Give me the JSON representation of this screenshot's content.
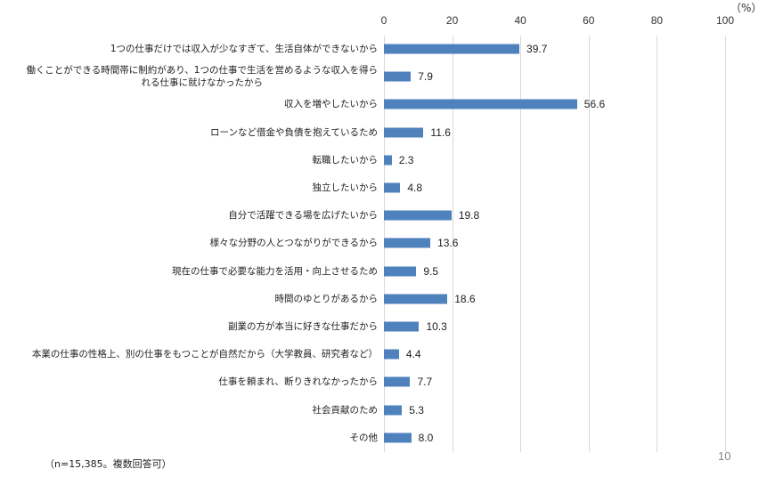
{
  "chart_data": {
    "type": "bar",
    "orientation": "horizontal",
    "title": "",
    "xlabel": "",
    "ylabel": "",
    "unit_label": "（%）",
    "xlim": [
      0,
      100
    ],
    "x_ticks": [
      "0",
      "20",
      "40",
      "60",
      "80",
      "100"
    ],
    "grid": true,
    "bar_color": "#4f81bd",
    "categories": [
      "1つの仕事だけでは収入が少なすぎて、生活自体ができないから",
      "働くことができる時間帯に制約があり、1つの仕事で生活を営めるような収入を得られる仕事に就けなかったから",
      "収入を増やしたいから",
      "ローンなど借金や負債を抱えているため",
      "転職したいから",
      "独立したいから",
      "自分で活躍できる場を広げたいから",
      "様々な分野の人とつながりができるから",
      "現在の仕事で必要な能力を活用・向上させるため",
      "時間のゆとりがあるから",
      "副業の方が本当に好きな仕事だから",
      "本業の仕事の性格上、別の仕事をもつことが自然だから（大学教員、研究者など）",
      "仕事を頼まれ、断りきれなかったから",
      "社会貢献のため",
      "その他"
    ],
    "values": [
      39.7,
      7.9,
      56.6,
      11.6,
      2.3,
      4.8,
      19.8,
      13.6,
      9.5,
      18.6,
      10.3,
      4.4,
      7.7,
      5.3,
      8.0
    ],
    "note": "（n=15,385。複数回答可）"
  },
  "axis": {
    "unit": "（%）",
    "ticks": [
      "0",
      "20",
      "40",
      "60",
      "80",
      "100"
    ]
  },
  "rows": [
    {
      "label_lines": [
        "1つの仕事だけでは収入が少なすぎて、生活自体ができないから"
      ],
      "value": "39.7"
    },
    {
      "label_lines": [
        "働くことができる時間帯に制約があり、1つの仕事で生活を営めるような収入を得ら",
        "れる仕事に就けなかったから"
      ],
      "value": "7.9"
    },
    {
      "label_lines": [
        "収入を増やしたいから"
      ],
      "value": "56.6"
    },
    {
      "label_lines": [
        "ローンなど借金や負債を抱えているため"
      ],
      "value": "11.6"
    },
    {
      "label_lines": [
        "転職したいから"
      ],
      "value": "2.3"
    },
    {
      "label_lines": [
        "独立したいから"
      ],
      "value": "4.8"
    },
    {
      "label_lines": [
        "自分で活躍できる場を広げたいから"
      ],
      "value": "19.8"
    },
    {
      "label_lines": [
        "様々な分野の人とつながりができるから"
      ],
      "value": "13.6"
    },
    {
      "label_lines": [
        "現在の仕事で必要な能力を活用・向上させるため"
      ],
      "value": "9.5"
    },
    {
      "label_lines": [
        "時間のゆとりがあるから"
      ],
      "value": "18.6"
    },
    {
      "label_lines": [
        "副業の方が本当に好きな仕事だから"
      ],
      "value": "10.3"
    },
    {
      "label_lines": [
        "本業の仕事の性格上、別の仕事をもつことが自然だから（大学教員、研究者など）"
      ],
      "value": "4.4"
    },
    {
      "label_lines": [
        "仕事を頼まれ、断りきれなかったから"
      ],
      "value": "7.7"
    },
    {
      "label_lines": [
        "社会貢献のため"
      ],
      "value": "5.3"
    },
    {
      "label_lines": [
        "その他"
      ],
      "value": "8.0"
    }
  ],
  "footer": {
    "note": "（n=15,385。複数回答可）",
    "page_number": "10"
  }
}
